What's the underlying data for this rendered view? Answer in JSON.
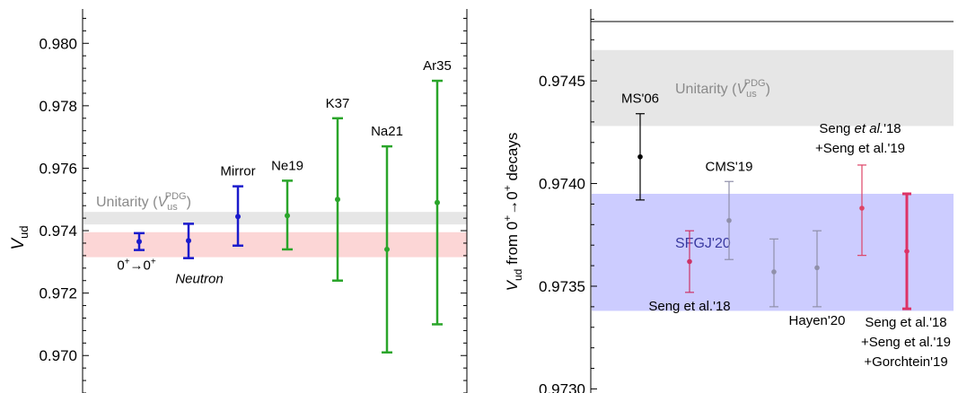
{
  "chart_data": [
    {
      "type": "scatter",
      "ylabel_main": "V",
      "ylabel_sub": "ud",
      "ylim": [
        0.9688,
        0.9811
      ],
      "yticks": [
        "0.970",
        "0.972",
        "0.974",
        "0.976",
        "0.978",
        "0.980"
      ],
      "grid": false,
      "bands": [
        {
          "name": "unitarity",
          "ymin": 0.9742,
          "ymax": 0.9746,
          "color": "#e6e6e6",
          "label_main": "Unitarity (",
          "label_v": "V",
          "label_sub": "us",
          "label_sup": "PDG",
          "label_close": ")",
          "label_color": "#8a8a8a"
        },
        {
          "name": "average",
          "ymin": 0.97315,
          "ymax": 0.97395,
          "color": "#fcd6d6"
        }
      ],
      "points": [
        {
          "x": 1,
          "y": 0.97365,
          "lo": 0.97338,
          "hi": 0.97392,
          "color": "#1a1acc",
          "label_base": "0",
          "label_sup1": "+",
          "label_arrow": "→0",
          "label_sup2": "+",
          "label_pos": "below"
        },
        {
          "x": 2,
          "y": 0.97368,
          "lo": 0.97312,
          "hi": 0.97422,
          "color": "#1a1acc",
          "label": "Neutron",
          "italic": true,
          "label_pos": "below"
        },
        {
          "x": 3,
          "y": 0.97445,
          "lo": 0.97352,
          "hi": 0.97542,
          "color": "#1a1acc",
          "label": "Mirror",
          "label_pos": "above"
        },
        {
          "x": 4,
          "y": 0.97448,
          "lo": 0.9734,
          "hi": 0.9756,
          "color": "#2aa52a",
          "label": "Ne19",
          "label_pos": "above"
        },
        {
          "x": 5,
          "y": 0.975,
          "lo": 0.9724,
          "hi": 0.9776,
          "color": "#2aa52a",
          "label": "K37",
          "label_pos": "above"
        },
        {
          "x": 6,
          "y": 0.9734,
          "lo": 0.9701,
          "hi": 0.9767,
          "color": "#2aa52a",
          "label": "Na21",
          "label_pos": "above"
        },
        {
          "x": 7,
          "y": 0.9749,
          "lo": 0.971,
          "hi": 0.9788,
          "color": "#2aa52a",
          "label": "Ar35",
          "label_pos": "above"
        }
      ]
    },
    {
      "type": "scatter",
      "ylabel_parts": {
        "v": "V",
        "sub": "ud",
        "text": " from 0",
        "sup1": "+",
        "arrow": "→0",
        "sup2": "+",
        "tail": " decays"
      },
      "ylim": [
        0.97298,
        0.97485
      ],
      "yticks": [
        "0.9730",
        "0.9735",
        "0.9740",
        "0.9745"
      ],
      "grid": false,
      "bands": [
        {
          "name": "unitarity",
          "ymin": 0.97428,
          "ymax": 0.97465,
          "color": "#e6e6e6",
          "label_main": "Unitarity (",
          "label_v": "V",
          "label_sub": "us",
          "label_sup": "PDG",
          "label_close": ")",
          "label_color": "#8a8a8a"
        },
        {
          "name": "sfgj",
          "ymin": 0.97338,
          "ymax": 0.97395,
          "color": "#ccccff",
          "label": "SFGJ'20",
          "label_color": "#3a3aa0"
        }
      ],
      "points": [
        {
          "x": 1,
          "y": 0.97413,
          "lo": 0.97392,
          "hi": 0.97434,
          "color": "#000000",
          "label": "MS'06",
          "label_pos": "above"
        },
        {
          "x": 2,
          "y": 0.97362,
          "lo": 0.97347,
          "hi": 0.97377,
          "color": "#cc3366",
          "label": "Seng et al.'18",
          "label_pos": "below"
        },
        {
          "x": 3,
          "y": 0.97382,
          "lo": 0.97363,
          "hi": 0.97401,
          "color": "#9090aa",
          "label": "CMS'19",
          "label_pos": "above"
        },
        {
          "x": 4,
          "y": 0.97357,
          "lo": 0.9734,
          "hi": 0.97373,
          "color": "#9090aa",
          "label": "",
          "label_pos": "none"
        },
        {
          "x": 5,
          "y": 0.97359,
          "lo": 0.9734,
          "hi": 0.97377,
          "color": "#9090aa",
          "label": "Hayen'20",
          "label_pos": "below"
        },
        {
          "x": 6,
          "y": 0.97388,
          "lo": 0.97365,
          "hi": 0.97409,
          "color": "#dd4466",
          "label_lines": [
            "Seng et al.'18",
            "+Seng et al.'19"
          ],
          "italic_first": true,
          "label_pos": "above"
        },
        {
          "x": 7,
          "y": 0.97367,
          "lo": 0.97339,
          "hi": 0.97395,
          "color": "#dd3366",
          "label_lines": [
            "Seng et al.'18",
            "+Seng et al.'19",
            "+Gorchtein'19"
          ],
          "label_pos": "below",
          "bold": true
        }
      ]
    }
  ]
}
